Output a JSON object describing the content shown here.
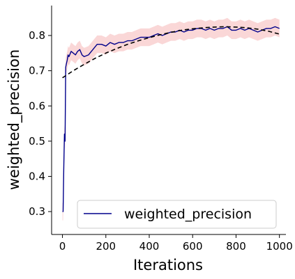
{
  "chart_data": {
    "type": "line",
    "xlabel": "Iterations",
    "ylabel": "weighted_precision",
    "xlim": [
      -50,
      1030
    ],
    "ylim": [
      0.235,
      0.885
    ],
    "xticks": [
      0,
      200,
      400,
      600,
      800,
      1000
    ],
    "yticks": [
      0.3,
      0.4,
      0.5,
      0.6,
      0.7,
      0.8
    ],
    "grid": false,
    "legend_position": "lower-right",
    "series": [
      {
        "name": "weighted_precision",
        "color": "#00008b",
        "band_color": "#f4a6a6",
        "band_halfwidth": 0.025,
        "x": [
          0,
          3,
          6,
          9,
          12,
          15,
          18,
          22,
          26,
          30,
          40,
          50,
          60,
          70,
          80,
          90,
          100,
          120,
          140,
          160,
          180,
          200,
          220,
          240,
          260,
          280,
          300,
          320,
          340,
          360,
          380,
          400,
          420,
          440,
          460,
          480,
          500,
          520,
          540,
          560,
          580,
          600,
          620,
          640,
          660,
          680,
          700,
          720,
          740,
          760,
          780,
          800,
          820,
          840,
          860,
          880,
          900,
          920,
          940,
          960,
          980,
          1000
        ],
        "values": [
          0.3,
          0.3,
          0.42,
          0.52,
          0.5,
          0.71,
          0.72,
          0.73,
          0.745,
          0.74,
          0.755,
          0.75,
          0.745,
          0.755,
          0.76,
          0.745,
          0.74,
          0.745,
          0.76,
          0.775,
          0.775,
          0.77,
          0.78,
          0.775,
          0.78,
          0.78,
          0.785,
          0.785,
          0.79,
          0.795,
          0.795,
          0.795,
          0.8,
          0.805,
          0.8,
          0.805,
          0.81,
          0.81,
          0.815,
          0.81,
          0.815,
          0.815,
          0.82,
          0.82,
          0.815,
          0.82,
          0.815,
          0.82,
          0.82,
          0.825,
          0.815,
          0.815,
          0.82,
          0.815,
          0.82,
          0.815,
          0.81,
          0.815,
          0.82,
          0.82,
          0.825,
          0.82
        ]
      },
      {
        "name": "",
        "style": "dashed",
        "color": "#000000",
        "x": [
          0,
          50,
          100,
          150,
          200,
          250,
          300,
          350,
          400,
          450,
          500,
          550,
          600,
          650,
          700,
          750,
          800,
          850,
          900,
          950,
          1000
        ],
        "values": [
          0.68,
          0.7,
          0.718,
          0.735,
          0.75,
          0.763,
          0.775,
          0.785,
          0.794,
          0.802,
          0.809,
          0.815,
          0.819,
          0.822,
          0.824,
          0.825,
          0.824,
          0.822,
          0.818,
          0.812,
          0.804
        ]
      }
    ]
  }
}
